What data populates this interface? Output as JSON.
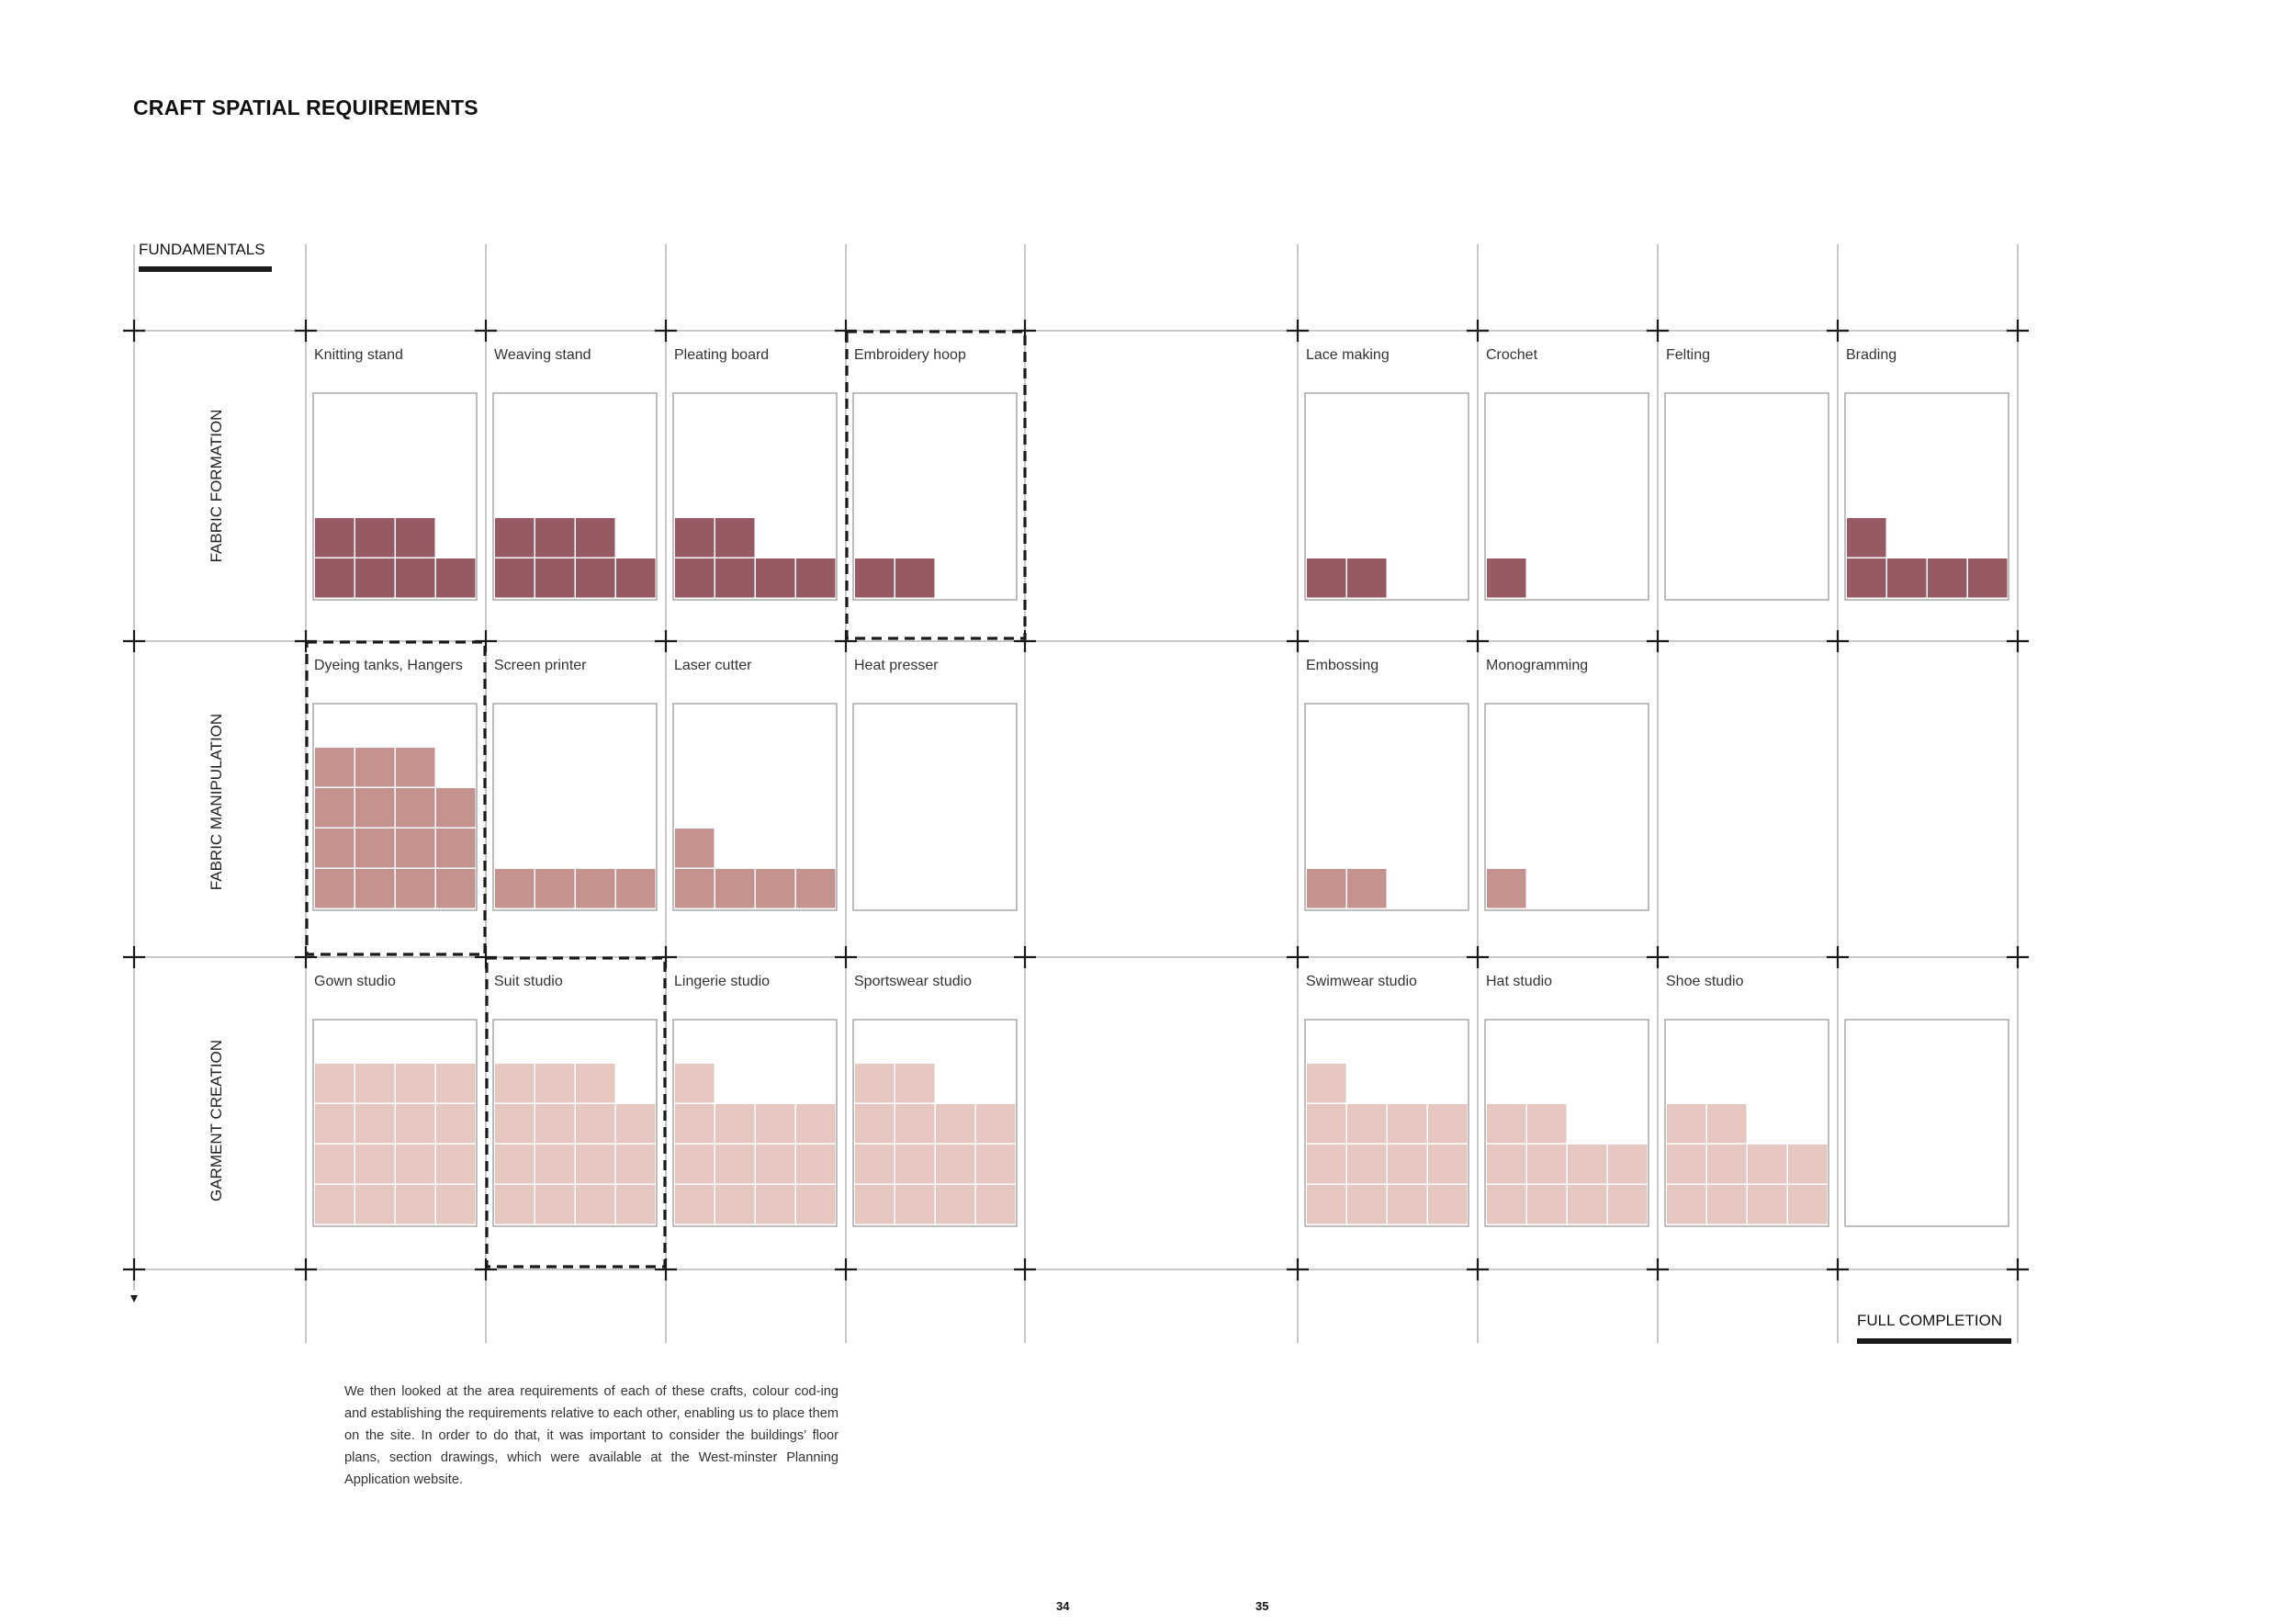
{
  "title": "CRAFT SPATIAL REQUIREMENTS",
  "top_left_label": "FUNDAMENTALS",
  "bottom_right_label": "FULL COMPLETION",
  "colors": {
    "row1": "#955a62",
    "row2": "#c4938f",
    "row3": "#e5c7c0",
    "grid_line": "#b5b5b5",
    "dark": "#1a1a1a"
  },
  "rows": [
    {
      "label": "FABRIC FORMATION"
    },
    {
      "label": "FABRIC MANIPULATION"
    },
    {
      "label": "GARMENT CREATION"
    }
  ],
  "crafts": [
    {
      "row": 0,
      "col": 0,
      "label": "Knitting stand",
      "fill": [
        3,
        4
      ],
      "dashed": false
    },
    {
      "row": 0,
      "col": 1,
      "label": "Weaving stand",
      "fill": [
        3,
        4
      ],
      "dashed": false
    },
    {
      "row": 0,
      "col": 2,
      "label": "Pleating board",
      "fill": [
        2,
        4
      ],
      "dashed": false
    },
    {
      "row": 0,
      "col": 3,
      "label": "Embroidery hoop",
      "fill": [
        2
      ],
      "dashed": true
    },
    {
      "row": 0,
      "col": 4,
      "label": "Lace making",
      "fill": [
        2
      ],
      "dashed": false
    },
    {
      "row": 0,
      "col": 5,
      "label": "Crochet",
      "fill": [
        1
      ],
      "dashed": false
    },
    {
      "row": 0,
      "col": 6,
      "label": "Felting",
      "fill": [],
      "dashed": false
    },
    {
      "row": 0,
      "col": 7,
      "label": "Brading",
      "fill": [
        1,
        4
      ],
      "dashed": false
    },
    {
      "row": 1,
      "col": 0,
      "label": "Dyeing tanks, Hangers",
      "fill": [
        3,
        4,
        4,
        4
      ],
      "dashed": true
    },
    {
      "row": 1,
      "col": 1,
      "label": "Screen printer",
      "fill": [
        4
      ],
      "dashed": false
    },
    {
      "row": 1,
      "col": 2,
      "label": "Laser cutter",
      "fill": [
        1,
        4
      ],
      "dashed": false
    },
    {
      "row": 1,
      "col": 3,
      "label": "Heat presser",
      "fill": [],
      "dashed": false
    },
    {
      "row": 1,
      "col": 4,
      "label": "Embossing",
      "fill": [
        2
      ],
      "dashed": false
    },
    {
      "row": 1,
      "col": 5,
      "label": "Monogramming",
      "fill": [
        1
      ],
      "dashed": false
    },
    {
      "row": 2,
      "col": 0,
      "label": "Gown studio",
      "fill": [
        4,
        4,
        4,
        4
      ],
      "dashed": false
    },
    {
      "row": 2,
      "col": 1,
      "label": "Suit studio",
      "fill": [
        3,
        4,
        4,
        4
      ],
      "dashed": true
    },
    {
      "row": 2,
      "col": 2,
      "label": "Lingerie studio",
      "fill": [
        1,
        4,
        4,
        4
      ],
      "dashed": false
    },
    {
      "row": 2,
      "col": 3,
      "label": "Sportswear studio",
      "fill": [
        2,
        4,
        4,
        4
      ],
      "dashed": false
    },
    {
      "row": 2,
      "col": 4,
      "label": "Swimwear studio",
      "fill": [
        1,
        4,
        4,
        4
      ],
      "dashed": false
    },
    {
      "row": 2,
      "col": 5,
      "label": "Hat studio",
      "fill": [
        2,
        4,
        4
      ],
      "dashed": false
    },
    {
      "row": 2,
      "col": 6,
      "label": "Shoe studio",
      "fill": [
        2,
        4,
        4
      ],
      "dashed": false
    },
    {
      "row": 2,
      "col": 7,
      "label": "",
      "fill": [],
      "dashed": false
    }
  ],
  "caption": "We then looked at the area requirements of each of these crafts, colour cod-ing and establishing the requirements relative to each other, enabling us to place them on the site. In order to do that, it was important to consider the buildings’ floor plans, section drawings, which were available at the West-minster Planning Application website.",
  "page_numbers": {
    "left": "34",
    "right": "35"
  }
}
